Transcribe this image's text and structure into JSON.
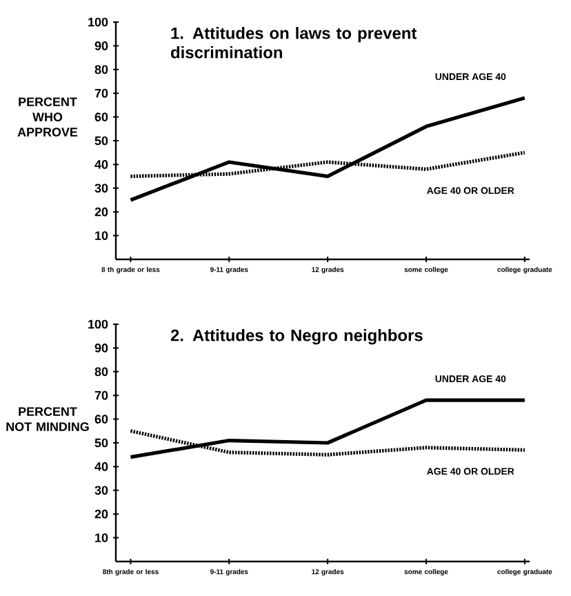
{
  "chart_data": [
    {
      "type": "line",
      "title": "1. Attitudes on laws to prevent discrimination",
      "ylabel": "PERCENT WHO APPROVE",
      "categories": [
        "8 th grade or less",
        "9-11 grades",
        "12 grades",
        "some college",
        "college graduate"
      ],
      "ylim": [
        0,
        100
      ],
      "yticks": [
        10,
        20,
        30,
        40,
        50,
        60,
        70,
        80,
        90,
        100
      ],
      "legend": false,
      "marker": "none",
      "series": [
        {
          "name": "UNDER AGE 40",
          "color": "#000000",
          "line_style": "solid",
          "values": [
            25,
            41,
            35,
            56,
            68
          ]
        },
        {
          "name": "AGE 40 OR OLDER",
          "color": "#000000",
          "line_style": "dotted",
          "values": [
            35,
            36,
            41,
            38,
            45
          ]
        }
      ]
    },
    {
      "type": "line",
      "title": "2. Attitudes to Negro neighbors",
      "ylabel": "PERCENT NOT MINDING",
      "categories": [
        "8th grade or less",
        "9-11 grades",
        "12 grades",
        "some college",
        "college graduate"
      ],
      "ylim": [
        0,
        100
      ],
      "yticks": [
        10,
        20,
        30,
        40,
        50,
        60,
        70,
        80,
        90,
        100
      ],
      "legend": false,
      "marker": "none",
      "series": [
        {
          "name": "UNDER AGE 40",
          "color": "#000000",
          "line_style": "solid",
          "values": [
            44,
            51,
            50,
            68,
            68
          ]
        },
        {
          "name": "AGE 40 OR OLDER",
          "color": "#000000",
          "line_style": "dotted",
          "values": [
            55,
            46,
            45,
            48,
            47
          ]
        }
      ]
    }
  ]
}
